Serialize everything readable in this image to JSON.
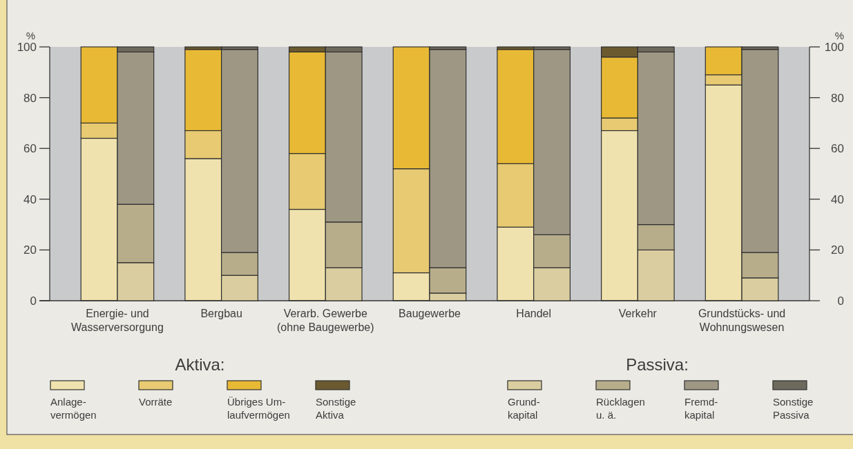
{
  "chart_data": [
    {
      "type": "bar",
      "stacked": true,
      "categories": [
        "Energie- und\nWasserversorgung",
        "Bergbau",
        "Verarb. Gewerbe\n(ohne Baugewerbe)",
        "Baugewerbe",
        "Handel",
        "Verkehr",
        "Grundstücks- und\nWohnungswesen"
      ],
      "series": [
        {
          "name": "Anlage-\nvermögen",
          "color": "#efe2ae",
          "values": [
            64,
            56,
            36,
            11,
            29,
            67,
            85
          ]
        },
        {
          "name": "Vorräte",
          "color": "#e7ca72",
          "values": [
            6,
            11,
            22,
            41,
            25,
            5,
            4
          ]
        },
        {
          "name": "Übriges Um-\nlaufvermögen",
          "color": "#e8b935",
          "values": [
            30,
            32,
            40,
            48,
            45,
            24,
            11
          ]
        },
        {
          "name": "Sonstige\nAktiva",
          "color": "#6b5a30",
          "values": [
            0,
            1,
            2,
            0,
            1,
            4,
            0
          ]
        }
      ],
      "ylim": [
        0,
        100
      ],
      "yticks": [
        0,
        20,
        40,
        60,
        80,
        100
      ],
      "ylabel": "%",
      "legend": "bottom left",
      "legend_title": "Aktiva:"
    },
    {
      "type": "bar",
      "stacked": true,
      "categories": [
        null,
        null,
        null,
        null,
        null,
        null,
        null
      ],
      "series": [
        {
          "name": "Grund-\nkapital",
          "color": "#dacd9f",
          "values": [
            15,
            10,
            13,
            3,
            13,
            20,
            9
          ]
        },
        {
          "name": "Rücklagen\nu. ä.",
          "color": "#b7ad8b",
          "values": [
            23,
            9,
            18,
            10,
            13,
            10,
            10
          ]
        },
        {
          "name": "Fremd-\nkapital",
          "color": "#9d9784",
          "values": [
            60,
            80,
            67,
            86,
            73,
            68,
            80
          ]
        },
        {
          "name": "Sonstige\nPassiva",
          "color": "#6d695d",
          "values": [
            2,
            1,
            2,
            1,
            1,
            2,
            1
          ]
        }
      ],
      "ylim": [
        0,
        100
      ],
      "yticks": [
        0,
        20,
        40,
        60,
        80,
        100
      ],
      "ylabel": "%",
      "tick_labels": "y",
      "legend": "bottom right",
      "legend_title": "Passiva:"
    }
  ]
}
